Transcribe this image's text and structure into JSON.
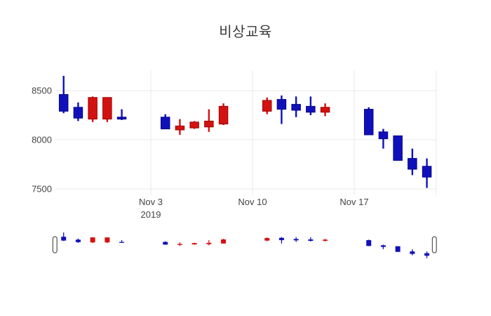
{
  "chart_data": {
    "type": "candlestick",
    "title": "비상교육",
    "xlabel": "",
    "ylabel": "",
    "grid": true,
    "legend": false,
    "ylim": [
      7440,
      8710
    ],
    "y_ticks": [
      8500,
      8000,
      7500
    ],
    "x_ticks": [
      {
        "date": "2019-11-03",
        "label": "Nov 3",
        "sublabel": "2019"
      },
      {
        "date": "2019-11-10",
        "label": "Nov 10",
        "sublabel": ""
      },
      {
        "date": "2019-11-17",
        "label": "Nov 17",
        "sublabel": ""
      }
    ],
    "colors": {
      "increasing": "#d41111",
      "increasing_edge": "#9e0505",
      "decreasing": "#1010bb",
      "decreasing_edge": "#050588",
      "gridline": "#e9e9e9",
      "tick_text": "#444444",
      "slider_handle_fill": "#ffffff",
      "slider_handle_border": "#555555"
    },
    "candles": [
      {
        "date": "2019-10-28",
        "open": 8460,
        "high": 8650,
        "low": 8270,
        "close": 8290
      },
      {
        "date": "2019-10-29",
        "open": 8330,
        "high": 8380,
        "low": 8190,
        "close": 8220
      },
      {
        "date": "2019-10-30",
        "open": 8210,
        "high": 8440,
        "low": 8180,
        "close": 8430
      },
      {
        "date": "2019-10-31",
        "open": 8210,
        "high": 8430,
        "low": 8180,
        "close": 8430
      },
      {
        "date": "2019-11-01",
        "open": 8230,
        "high": 8310,
        "low": 8200,
        "close": 8210
      },
      {
        "date": "2019-11-04",
        "open": 8230,
        "high": 8260,
        "low": 8110,
        "close": 8110
      },
      {
        "date": "2019-11-05",
        "open": 8100,
        "high": 8210,
        "low": 8050,
        "close": 8140
      },
      {
        "date": "2019-11-06",
        "open": 8120,
        "high": 8190,
        "low": 8110,
        "close": 8180
      },
      {
        "date": "2019-11-07",
        "open": 8130,
        "high": 8310,
        "low": 8080,
        "close": 8190
      },
      {
        "date": "2019-11-08",
        "open": 8160,
        "high": 8370,
        "low": 8150,
        "close": 8340
      },
      {
        "date": "2019-11-11",
        "open": 8290,
        "high": 8430,
        "low": 8260,
        "close": 8400
      },
      {
        "date": "2019-11-12",
        "open": 8410,
        "high": 8450,
        "low": 8160,
        "close": 8310
      },
      {
        "date": "2019-11-13",
        "open": 8360,
        "high": 8440,
        "low": 8230,
        "close": 8300
      },
      {
        "date": "2019-11-14",
        "open": 8340,
        "high": 8440,
        "low": 8250,
        "close": 8280
      },
      {
        "date": "2019-11-15",
        "open": 8280,
        "high": 8370,
        "low": 8240,
        "close": 8330
      },
      {
        "date": "2019-11-18",
        "open": 8310,
        "high": 8330,
        "low": 8050,
        "close": 8050
      },
      {
        "date": "2019-11-19",
        "open": 8080,
        "high": 8110,
        "low": 7910,
        "close": 8010
      },
      {
        "date": "2019-11-20",
        "open": 8040,
        "high": 8040,
        "low": 7790,
        "close": 7790
      },
      {
        "date": "2019-11-21",
        "open": 7810,
        "high": 7910,
        "low": 7640,
        "close": 7700
      },
      {
        "date": "2019-11-22",
        "open": 7730,
        "high": 7810,
        "low": 7510,
        "close": 7620
      }
    ],
    "rangeslider": {
      "present": true,
      "handles": [
        "left",
        "right"
      ]
    }
  }
}
